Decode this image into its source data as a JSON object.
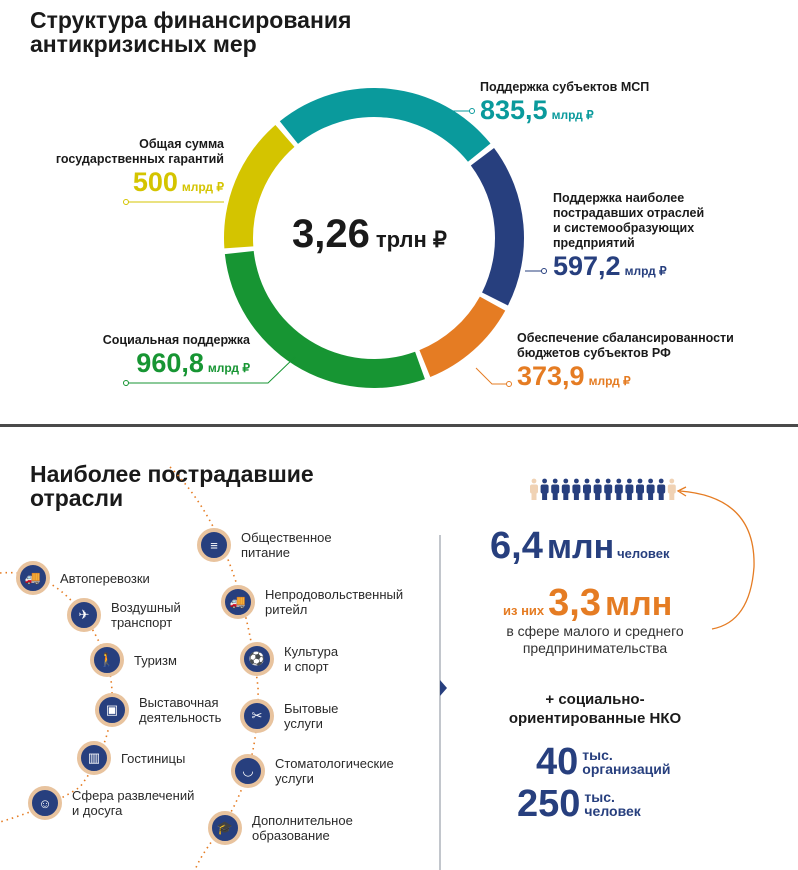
{
  "top": {
    "title_line1": "Структура финансирования",
    "title_line2": "антикризисных мер"
  },
  "chart_data": {
    "type": "pie",
    "donut": true,
    "center_value": "3,26",
    "center_unit": "трлн ₽",
    "unit": "млрд ₽",
    "slices": [
      {
        "label": "Поддержка субъектов МСП",
        "value": 835.5,
        "display": "835,5",
        "color": "#0a9a9c"
      },
      {
        "label": "Поддержка наиболее пострадавших отраслей и системообразующих предприятий",
        "value": 597.2,
        "display": "597,2",
        "color": "#273f7e"
      },
      {
        "label": "Обеспечение сбалансированности бюджетов субъектов РФ",
        "value": 373.9,
        "display": "373,9",
        "color": "#e57c23"
      },
      {
        "label": "Социальная поддержка",
        "value": 960.8,
        "display": "960,8",
        "color": "#179533"
      },
      {
        "label": "Общая сумма государственных гарантий",
        "value": 500,
        "display": "500",
        "color": "#d4c400"
      }
    ]
  },
  "labels": {
    "msp": [
      "Поддержка субъектов МСП"
    ],
    "branches": [
      "Поддержка наиболее",
      "пострадавших отраслей",
      "и системообразующих",
      "предприятий"
    ],
    "budget": [
      "Обеспечение сбалансированности",
      "бюджетов субъектов РФ"
    ],
    "social": [
      "Социальная поддержка"
    ],
    "guarantees": [
      "Общая сумма",
      "государственных гарантий"
    ]
  },
  "bottom": {
    "title_line1": "Наиболее пострадавшие",
    "title_line2": "отрасли",
    "industries_left": [
      {
        "label": "Автоперевозки",
        "icon": "truck-icon",
        "glyph": "🚚"
      },
      {
        "label": "Воздушный\nтранспорт",
        "icon": "airplane-icon",
        "glyph": "✈"
      },
      {
        "label": "Туризм",
        "icon": "hiker-icon",
        "glyph": "🚶"
      },
      {
        "label": "Выставочная\nдеятельность",
        "icon": "exhibition-icon",
        "glyph": "▣"
      },
      {
        "label": "Гостиницы",
        "icon": "hotel-icon",
        "glyph": "▥"
      },
      {
        "label": "Сфера развлечений\nи досуга",
        "icon": "theater-masks-icon",
        "glyph": "☺"
      }
    ],
    "industries_right": [
      {
        "label": "Общественное\nпитание",
        "icon": "burger-icon",
        "glyph": "≡"
      },
      {
        "label": "Непродовольственный\nритейл",
        "icon": "delivery-truck-icon",
        "glyph": "🚚"
      },
      {
        "label": "Культура\nи спорт",
        "icon": "soccer-ball-icon",
        "glyph": "⚽"
      },
      {
        "label": "Бытовые\nуслуги",
        "icon": "scissors-icon",
        "glyph": "✂"
      },
      {
        "label": "Стоматологические\nуслуги",
        "icon": "tooth-icon",
        "glyph": "◡"
      },
      {
        "label": "Дополнительное\nобразование",
        "icon": "graduation-cap-icon",
        "glyph": "🎓"
      }
    ],
    "stats": {
      "people_value": "6,4",
      "people_unit": "млн",
      "people_word": "человек",
      "of_them": "из них",
      "sme_value": "3,3",
      "sme_unit": "млн",
      "sme_text1": "в сфере малого и среднего",
      "sme_text2": "предпринимательства",
      "nko1": "+ социально-",
      "nko2": "ориентированные НКО",
      "orgs_value": "40",
      "orgs_unit1": "тыс.",
      "orgs_unit2": "организаций",
      "pers_value": "250",
      "pers_unit1": "тыс.",
      "pers_unit2": "человек"
    },
    "colors": {
      "navy": "#273f7e",
      "orange": "#e57c23",
      "ring": "#e8c39e"
    }
  }
}
